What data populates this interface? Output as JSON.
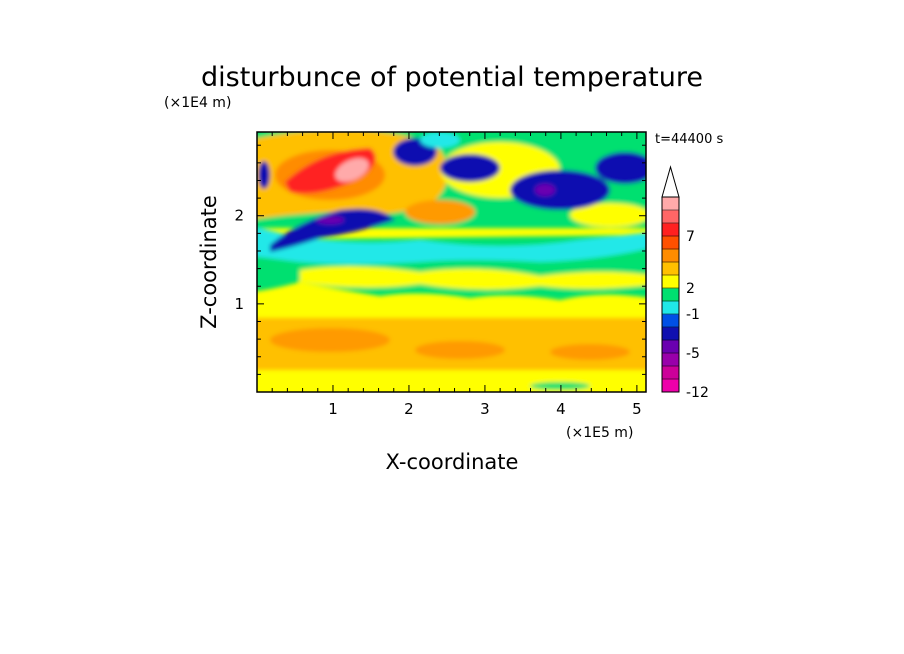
{
  "chart_data": {
    "type": "heatmap",
    "title": "disturbunce of potential temperature",
    "time_label": "t=44400 s",
    "xlabel": "X-coordinate",
    "ylabel": "Z-coordinate",
    "x_unit": "(×1E5 m)",
    "y_unit": "(×1E4 m)",
    "x_ticks": [
      "1",
      "2",
      "3",
      "4",
      "5"
    ],
    "y_ticks": [
      "1",
      "2"
    ],
    "xlim": [
      0,
      5.12
    ],
    "ylim": [
      0,
      2.95
    ],
    "colorbar": {
      "levels": [
        "-12",
        "-5",
        "-1",
        "2",
        "7"
      ],
      "bands": [
        "#ee00aa",
        "#cc0099",
        "#9900aa",
        "#6a00b0",
        "#1010b0",
        "#0050e6",
        "#20e8e8",
        "#00e070",
        "#ffff00",
        "#ffc000",
        "#ff8c00",
        "#ff5000",
        "#ff2020",
        "#ff6666",
        "#ffaaaa"
      ],
      "top_arrow_color": "#ffffff"
    },
    "features": [
      {
        "x": 1.2,
        "z": 2.65,
        "value": 8
      },
      {
        "x": 0.4,
        "z": 2.35,
        "value": 5
      },
      {
        "x": 1.0,
        "z": 2.0,
        "value": -5
      },
      {
        "x": 2.3,
        "z": 2.75,
        "value": 4
      },
      {
        "x": 2.2,
        "z": 2.6,
        "value": -5
      },
      {
        "x": 3.9,
        "z": 2.4,
        "value": -7
      },
      {
        "x": 4.7,
        "z": 2.65,
        "value": -5
      },
      {
        "x": 0.3,
        "z": 1.55,
        "value": -1
      },
      {
        "x": 2.5,
        "z": 1.1,
        "value": 1
      },
      {
        "x": 2.5,
        "z": 0.6,
        "value": 2
      }
    ]
  }
}
